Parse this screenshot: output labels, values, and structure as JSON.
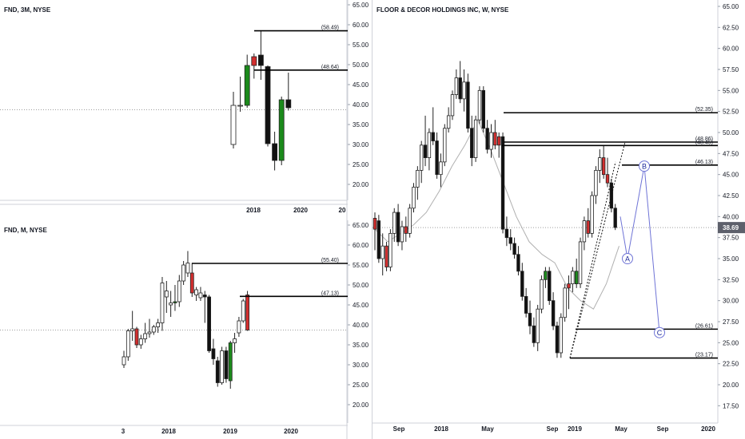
{
  "colors": {
    "up": "#ffffff",
    "up_filled": "#1b8a1b",
    "down": "#111111",
    "down_red": "#d32f2f",
    "level_line": "#000000",
    "price_line": "#9e9e9e",
    "price_tag": "#5d606b",
    "ma": "#b0b0b0",
    "wave": "#6f74d6",
    "wave_label": "#1e2a9b"
  },
  "chart_data": [
    {
      "type": "candlestick",
      "title": "FND, 3M, NYSE",
      "x_ticks": [
        "2018",
        "2020",
        "20"
      ],
      "y_ticks": [
        "65.00",
        "60.00",
        "55.00",
        "50.00",
        "45.00",
        "40.00",
        "35.00",
        "30.00",
        "25.00",
        "20.00"
      ],
      "ylim": [
        16,
        66
      ],
      "last_price": "38.69",
      "levels": [
        {
          "label": "(58.49)",
          "value": 58.49
        },
        {
          "label": "(48.64)",
          "value": 48.64
        }
      ],
      "candles": [
        {
          "o": 30.0,
          "h": 43.2,
          "l": 29.0,
          "c": 39.8,
          "style": "up"
        },
        {
          "o": 39.6,
          "h": 47.0,
          "l": 38.2,
          "c": 39.8,
          "style": "up"
        },
        {
          "o": 39.8,
          "h": 52.5,
          "l": 39.2,
          "c": 49.8,
          "style": "up_filled"
        },
        {
          "o": 49.8,
          "h": 52.8,
          "l": 46.5,
          "c": 52.0,
          "style": "down_red"
        },
        {
          "o": 52.4,
          "h": 58.5,
          "l": 46.2,
          "c": 49.8,
          "style": "down"
        },
        {
          "o": 49.5,
          "h": 49.8,
          "l": 29.5,
          "c": 30.2,
          "style": "down"
        },
        {
          "o": 30.2,
          "h": 33.2,
          "l": 23.5,
          "c": 26.0,
          "style": "down"
        },
        {
          "o": 26.0,
          "h": 42.0,
          "l": 24.8,
          "c": 41.2,
          "style": "up_filled"
        },
        {
          "o": 41.2,
          "h": 48.0,
          "l": 38.5,
          "c": 39.2,
          "style": "down"
        }
      ]
    },
    {
      "type": "candlestick",
      "title": "FND, M, NYSE",
      "x_ticks": [
        "3",
        "2018",
        "2019",
        "2020"
      ],
      "y_ticks": [
        "65.00",
        "60.00",
        "55.00",
        "50.00",
        "45.00",
        "40.00",
        "35.00",
        "30.00",
        "25.00",
        "20.00"
      ],
      "ylim": [
        16,
        66
      ],
      "last_price": "38.69",
      "levels": [
        {
          "label": "(55.40)",
          "value": 55.4
        },
        {
          "label": "(47.13)",
          "value": 47.13
        }
      ],
      "candles": [
        {
          "o": 30.0,
          "h": 33.5,
          "l": 29.2,
          "c": 32.0,
          "style": "up"
        },
        {
          "o": 32.0,
          "h": 39.0,
          "l": 31.0,
          "c": 38.5,
          "style": "up"
        },
        {
          "o": 38.5,
          "h": 43.5,
          "l": 36.0,
          "c": 39.0,
          "style": "up"
        },
        {
          "o": 39.0,
          "h": 39.5,
          "l": 34.2,
          "c": 35.0,
          "style": "down_red"
        },
        {
          "o": 35.0,
          "h": 37.5,
          "l": 34.0,
          "c": 36.5,
          "style": "up"
        },
        {
          "o": 36.5,
          "h": 40.5,
          "l": 35.5,
          "c": 37.8,
          "style": "up"
        },
        {
          "o": 37.8,
          "h": 41.5,
          "l": 36.8,
          "c": 38.2,
          "style": "up"
        },
        {
          "o": 38.2,
          "h": 40.0,
          "l": 37.5,
          "c": 39.5,
          "style": "up"
        },
        {
          "o": 39.5,
          "h": 41.5,
          "l": 38.0,
          "c": 40.5,
          "style": "up"
        },
        {
          "o": 40.5,
          "h": 52.0,
          "l": 38.5,
          "c": 50.5,
          "style": "up"
        },
        {
          "o": 48.5,
          "h": 51.0,
          "l": 43.0,
          "c": 47.0,
          "style": "up"
        },
        {
          "o": 45.0,
          "h": 48.5,
          "l": 42.0,
          "c": 45.5,
          "style": "up"
        },
        {
          "o": 45.5,
          "h": 50.0,
          "l": 43.5,
          "c": 45.8,
          "style": "up_filled"
        },
        {
          "o": 45.8,
          "h": 52.5,
          "l": 44.5,
          "c": 51.0,
          "style": "up"
        },
        {
          "o": 51.0,
          "h": 56.0,
          "l": 50.0,
          "c": 55.0,
          "style": "up"
        },
        {
          "o": 55.5,
          "h": 58.5,
          "l": 52.0,
          "c": 53.0,
          "style": "up"
        },
        {
          "o": 53.0,
          "h": 55.5,
          "l": 47.0,
          "c": 48.0,
          "style": "down_red"
        },
        {
          "o": 47.5,
          "h": 49.5,
          "l": 46.0,
          "c": 48.8,
          "style": "up"
        },
        {
          "o": 48.0,
          "h": 49.5,
          "l": 46.0,
          "c": 46.8,
          "style": "up"
        },
        {
          "o": 47.0,
          "h": 48.5,
          "l": 40.5,
          "c": 47.5,
          "style": "down"
        },
        {
          "o": 47.0,
          "h": 47.5,
          "l": 33.0,
          "c": 33.5,
          "style": "down"
        },
        {
          "o": 34.0,
          "h": 36.5,
          "l": 30.0,
          "c": 31.5,
          "style": "down"
        },
        {
          "o": 31.0,
          "h": 32.0,
          "l": 24.5,
          "c": 25.5,
          "style": "down"
        },
        {
          "o": 25.5,
          "h": 34.5,
          "l": 25.0,
          "c": 33.5,
          "style": "up"
        },
        {
          "o": 33.5,
          "h": 34.5,
          "l": 25.5,
          "c": 26.5,
          "style": "down"
        },
        {
          "o": 26.0,
          "h": 36.0,
          "l": 24.0,
          "c": 35.5,
          "style": "up_filled"
        },
        {
          "o": 35.5,
          "h": 38.0,
          "l": 33.0,
          "c": 36.5,
          "style": "up"
        },
        {
          "o": 38.0,
          "h": 42.0,
          "l": 37.0,
          "c": 41.0,
          "style": "up"
        },
        {
          "o": 41.0,
          "h": 46.5,
          "l": 40.5,
          "c": 46.0,
          "style": "up"
        },
        {
          "o": 47.5,
          "h": 48.5,
          "l": 38.5,
          "c": 38.7,
          "style": "down_red"
        }
      ]
    },
    {
      "type": "candlestick",
      "title": "FLOOR & DECOR HOLDINGS INC, W, NYSE",
      "x_ticks": [
        "Sep",
        "2018",
        "May",
        "Sep",
        "2019",
        "May",
        "Sep",
        "2020"
      ],
      "y_ticks": [
        "65.00",
        "62.50",
        "60.00",
        "57.50",
        "55.00",
        "52.50",
        "50.00",
        "47.50",
        "45.00",
        "42.50",
        "40.00",
        "37.50",
        "35.00",
        "32.50",
        "30.00",
        "27.50",
        "25.00",
        "22.50",
        "20.00",
        "17.50"
      ],
      "ylim": [
        15.5,
        66
      ],
      "last_price": "38.69",
      "levels": [
        {
          "label": "(52.35)",
          "value": 52.35
        },
        {
          "label": "(48.86)",
          "value": 48.86
        },
        {
          "label": "(48.45)",
          "value": 48.45
        },
        {
          "label": "(46.13)",
          "value": 46.13
        },
        {
          "label": "(26.61)",
          "value": 26.61
        },
        {
          "label": "(23.17)",
          "value": 23.17
        }
      ],
      "projection": [
        {
          "label": "A",
          "value": 35.0
        },
        {
          "label": "B",
          "value": 46.0
        },
        {
          "label": "C",
          "value": 26.2
        }
      ],
      "ma": [
        38.5,
        37.0,
        38.0,
        39.0,
        40.5,
        43.0,
        46.0,
        48.5,
        51.5,
        48.0,
        44.0,
        40.0,
        37.0,
        35.5,
        34.5,
        31.5,
        30.0,
        29.0,
        32.0,
        36.5
      ],
      "candles": [
        {
          "o": 38.5,
          "h": 40.5,
          "l": 36.0,
          "c": 39.8,
          "style": "down_red"
        },
        {
          "o": 39.5,
          "h": 40.2,
          "l": 34.5,
          "c": 35.0,
          "style": "down"
        },
        {
          "o": 35.0,
          "h": 38.0,
          "l": 33.0,
          "c": 36.5,
          "style": "up"
        },
        {
          "o": 36.5,
          "h": 37.0,
          "l": 33.5,
          "c": 34.0,
          "style": "down_red"
        },
        {
          "o": 34.0,
          "h": 38.5,
          "l": 33.5,
          "c": 38.0,
          "style": "up"
        },
        {
          "o": 38.0,
          "h": 41.0,
          "l": 37.0,
          "c": 40.5,
          "style": "up"
        },
        {
          "o": 40.5,
          "h": 41.5,
          "l": 36.5,
          "c": 37.0,
          "style": "down"
        },
        {
          "o": 37.0,
          "h": 39.5,
          "l": 36.0,
          "c": 38.8,
          "style": "up"
        },
        {
          "o": 38.8,
          "h": 40.0,
          "l": 37.0,
          "c": 38.0,
          "style": "down_red"
        },
        {
          "o": 38.0,
          "h": 41.5,
          "l": 37.5,
          "c": 41.0,
          "style": "up"
        },
        {
          "o": 41.0,
          "h": 44.0,
          "l": 40.5,
          "c": 43.5,
          "style": "up"
        },
        {
          "o": 43.5,
          "h": 46.0,
          "l": 42.0,
          "c": 45.5,
          "style": "up"
        },
        {
          "o": 45.5,
          "h": 49.0,
          "l": 44.0,
          "c": 48.5,
          "style": "up"
        },
        {
          "o": 48.5,
          "h": 52.0,
          "l": 46.0,
          "c": 47.0,
          "style": "down"
        },
        {
          "o": 47.0,
          "h": 50.5,
          "l": 45.5,
          "c": 50.0,
          "style": "up"
        },
        {
          "o": 50.0,
          "h": 53.0,
          "l": 48.5,
          "c": 49.0,
          "style": "down"
        },
        {
          "o": 49.0,
          "h": 50.0,
          "l": 44.5,
          "c": 45.0,
          "style": "down"
        },
        {
          "o": 45.0,
          "h": 47.5,
          "l": 43.5,
          "c": 46.5,
          "style": "up"
        },
        {
          "o": 46.5,
          "h": 51.0,
          "l": 46.0,
          "c": 50.5,
          "style": "up"
        },
        {
          "o": 50.5,
          "h": 53.0,
          "l": 50.0,
          "c": 52.0,
          "style": "up"
        },
        {
          "o": 52.0,
          "h": 55.0,
          "l": 51.5,
          "c": 54.5,
          "style": "up"
        },
        {
          "o": 54.5,
          "h": 57.5,
          "l": 54.0,
          "c": 56.5,
          "style": "up"
        },
        {
          "o": 56.5,
          "h": 58.5,
          "l": 53.5,
          "c": 54.0,
          "style": "down"
        },
        {
          "o": 54.0,
          "h": 57.5,
          "l": 52.5,
          "c": 56.0,
          "style": "up"
        },
        {
          "o": 56.0,
          "h": 57.0,
          "l": 50.0,
          "c": 50.5,
          "style": "down"
        },
        {
          "o": 50.5,
          "h": 52.0,
          "l": 46.0,
          "c": 47.0,
          "style": "down"
        },
        {
          "o": 47.0,
          "h": 52.0,
          "l": 46.5,
          "c": 51.5,
          "style": "up"
        },
        {
          "o": 51.5,
          "h": 55.5,
          "l": 51.0,
          "c": 55.0,
          "style": "up"
        },
        {
          "o": 55.0,
          "h": 55.5,
          "l": 50.0,
          "c": 50.5,
          "style": "down"
        },
        {
          "o": 50.5,
          "h": 51.5,
          "l": 47.5,
          "c": 48.0,
          "style": "down"
        },
        {
          "o": 48.0,
          "h": 51.0,
          "l": 47.0,
          "c": 50.0,
          "style": "up"
        },
        {
          "o": 50.0,
          "h": 51.5,
          "l": 48.0,
          "c": 48.5,
          "style": "down_red"
        },
        {
          "o": 48.5,
          "h": 50.0,
          "l": 47.0,
          "c": 49.5,
          "style": "down_red"
        },
        {
          "o": 49.5,
          "h": 50.0,
          "l": 38.0,
          "c": 38.5,
          "style": "down"
        },
        {
          "o": 38.5,
          "h": 40.0,
          "l": 36.5,
          "c": 37.5,
          "style": "down"
        },
        {
          "o": 37.5,
          "h": 38.5,
          "l": 36.0,
          "c": 36.8,
          "style": "down"
        },
        {
          "o": 36.8,
          "h": 37.5,
          "l": 35.0,
          "c": 35.5,
          "style": "down"
        },
        {
          "o": 35.5,
          "h": 36.5,
          "l": 33.0,
          "c": 33.5,
          "style": "down"
        },
        {
          "o": 33.5,
          "h": 34.5,
          "l": 30.0,
          "c": 30.5,
          "style": "down"
        },
        {
          "o": 30.5,
          "h": 31.5,
          "l": 28.0,
          "c": 28.5,
          "style": "down"
        },
        {
          "o": 28.5,
          "h": 30.0,
          "l": 26.0,
          "c": 27.0,
          "style": "down"
        },
        {
          "o": 27.0,
          "h": 28.0,
          "l": 24.5,
          "c": 25.0,
          "style": "down"
        },
        {
          "o": 25.0,
          "h": 29.5,
          "l": 24.0,
          "c": 29.0,
          "style": "up"
        },
        {
          "o": 29.0,
          "h": 33.0,
          "l": 28.5,
          "c": 32.5,
          "style": "up"
        },
        {
          "o": 32.5,
          "h": 34.0,
          "l": 31.5,
          "c": 33.5,
          "style": "up_filled"
        },
        {
          "o": 33.5,
          "h": 34.0,
          "l": 29.5,
          "c": 30.0,
          "style": "down"
        },
        {
          "o": 30.0,
          "h": 31.0,
          "l": 26.5,
          "c": 27.0,
          "style": "down"
        },
        {
          "o": 27.0,
          "h": 27.5,
          "l": 23.2,
          "c": 23.8,
          "style": "down"
        },
        {
          "o": 23.8,
          "h": 28.5,
          "l": 23.2,
          "c": 28.0,
          "style": "up"
        },
        {
          "o": 28.0,
          "h": 32.0,
          "l": 27.5,
          "c": 31.5,
          "style": "up"
        },
        {
          "o": 31.5,
          "h": 33.0,
          "l": 29.0,
          "c": 32.0,
          "style": "down_red"
        },
        {
          "o": 32.0,
          "h": 34.0,
          "l": 31.0,
          "c": 33.5,
          "style": "up"
        },
        {
          "o": 33.5,
          "h": 35.0,
          "l": 31.5,
          "c": 32.0,
          "style": "up_filled"
        },
        {
          "o": 32.0,
          "h": 37.5,
          "l": 31.5,
          "c": 37.0,
          "style": "up"
        },
        {
          "o": 37.0,
          "h": 40.0,
          "l": 36.0,
          "c": 39.5,
          "style": "up"
        },
        {
          "o": 39.5,
          "h": 41.0,
          "l": 37.5,
          "c": 38.0,
          "style": "down_red"
        },
        {
          "o": 38.0,
          "h": 43.0,
          "l": 37.5,
          "c": 42.5,
          "style": "up"
        },
        {
          "o": 42.5,
          "h": 46.0,
          "l": 41.5,
          "c": 45.5,
          "style": "up"
        },
        {
          "o": 45.5,
          "h": 48.0,
          "l": 44.0,
          "c": 47.0,
          "style": "up"
        },
        {
          "o": 47.0,
          "h": 48.5,
          "l": 44.5,
          "c": 45.0,
          "style": "down_red"
        },
        {
          "o": 45.0,
          "h": 47.0,
          "l": 43.5,
          "c": 44.0,
          "style": "down_red"
        },
        {
          "o": 44.0,
          "h": 44.5,
          "l": 40.5,
          "c": 41.0,
          "style": "down"
        },
        {
          "o": 41.0,
          "h": 41.5,
          "l": 38.4,
          "c": 38.7,
          "style": "down"
        }
      ]
    }
  ]
}
